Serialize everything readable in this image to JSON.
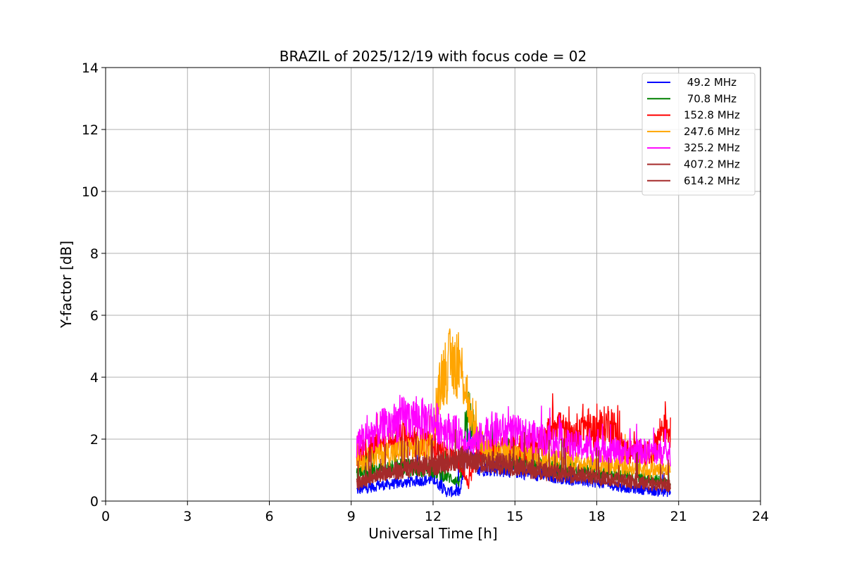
{
  "chart_data": {
    "type": "line",
    "title": "BRAZIL of 2025/12/19 with focus code = 02",
    "xlabel": "Universal Time [h]",
    "ylabel": "Y-factor [dB]",
    "xlim": [
      0,
      24
    ],
    "ylim": [
      0,
      14
    ],
    "xticks": [
      0,
      3,
      6,
      9,
      12,
      15,
      18,
      21,
      24
    ],
    "yticks": [
      0,
      2,
      4,
      6,
      8,
      10,
      12,
      14
    ],
    "grid": true,
    "legend_position": "top-right",
    "series": [
      {
        "name": " 49.2 MHz",
        "color": "#0000ff",
        "x": [
          9.2,
          10.0,
          11.0,
          12.0,
          12.5,
          13.0,
          13.3,
          13.6,
          14.0,
          15.0,
          16.0,
          17.0,
          18.0,
          19.0,
          20.0,
          20.7
        ],
        "y": [
          0.35,
          0.5,
          0.6,
          0.7,
          0.3,
          0.3,
          2.2,
          1.1,
          1.1,
          1.0,
          0.85,
          0.7,
          0.6,
          0.45,
          0.35,
          0.3
        ]
      },
      {
        "name": " 70.8 MHz",
        "color": "#008000",
        "x": [
          9.2,
          10.0,
          11.0,
          12.0,
          12.5,
          13.0,
          13.3,
          13.6,
          14.0,
          15.0,
          16.0,
          17.0,
          18.0,
          19.0,
          20.0,
          20.7
        ],
        "y": [
          0.9,
          1.0,
          1.1,
          1.0,
          0.8,
          0.6,
          2.9,
          2.0,
          1.5,
          1.3,
          1.1,
          1.0,
          0.9,
          0.8,
          0.7,
          0.6
        ]
      },
      {
        "name": "152.8 MHz",
        "color": "#ff0000",
        "x": [
          9.2,
          10.0,
          11.0,
          12.0,
          13.0,
          13.3,
          13.6,
          14.0,
          15.0,
          16.0,
          16.5,
          17.0,
          17.5,
          18.0,
          18.5,
          19.0,
          20.0,
          20.5,
          20.7
        ],
        "y": [
          1.5,
          1.8,
          2.0,
          1.8,
          1.2,
          0.5,
          1.5,
          1.6,
          1.7,
          1.8,
          2.6,
          2.0,
          2.5,
          2.2,
          2.6,
          1.6,
          1.5,
          2.6,
          2.2
        ]
      },
      {
        "name": "247.6 MHz",
        "color": "#ffa500",
        "x": [
          9.2,
          10.0,
          11.0,
          12.0,
          12.3,
          12.6,
          12.9,
          13.2,
          13.4,
          14.0,
          15.0,
          16.0,
          17.0,
          18.0,
          19.0,
          20.0,
          20.7
        ],
        "y": [
          1.2,
          1.5,
          1.6,
          1.8,
          4.0,
          4.4,
          4.5,
          3.8,
          2.4,
          1.6,
          1.5,
          1.4,
          1.3,
          1.2,
          1.1,
          1.0,
          1.0
        ]
      },
      {
        "name": "325.2 MHz",
        "color": "#ff00ff",
        "x": [
          9.2,
          10.0,
          11.0,
          12.0,
          12.5,
          13.0,
          13.5,
          14.0,
          15.0,
          16.0,
          17.0,
          18.0,
          19.0,
          20.0,
          20.7
        ],
        "y": [
          1.9,
          2.3,
          2.7,
          2.6,
          2.3,
          2.1,
          1.8,
          2.3,
          2.2,
          2.0,
          1.8,
          1.7,
          1.6,
          1.6,
          1.5
        ]
      },
      {
        "name": "407.2 MHz",
        "color": "#a52a2a",
        "x": [
          9.2,
          10.0,
          11.0,
          12.0,
          13.0,
          14.0,
          15.0,
          16.0,
          17.0,
          18.0,
          19.0,
          20.0,
          20.7
        ],
        "y": [
          0.5,
          0.8,
          1.0,
          1.1,
          1.3,
          1.2,
          1.1,
          0.9,
          0.8,
          0.7,
          0.6,
          0.5,
          0.45
        ]
      },
      {
        "name": "614.2 MHz",
        "color": "#a52a2a",
        "x": [
          9.2,
          10.0,
          11.0,
          12.0,
          13.0,
          14.0,
          15.0,
          16.0,
          17.0,
          18.0,
          19.0,
          20.0,
          20.7
        ],
        "y": [
          0.6,
          0.9,
          1.1,
          1.2,
          1.4,
          1.3,
          1.2,
          1.0,
          0.9,
          0.8,
          0.7,
          0.6,
          0.55
        ]
      }
    ]
  }
}
